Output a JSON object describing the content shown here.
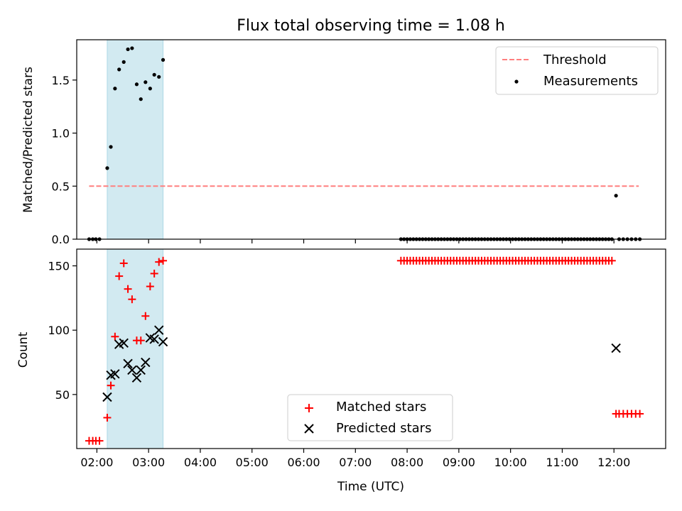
{
  "chart_data": [
    {
      "type": "scatter",
      "title": "Flux total observing time = 1.08 h",
      "xlabel": "",
      "ylabel": "Matched/Predicted stars",
      "ylim": [
        0,
        1.88
      ],
      "yticks": [
        0.0,
        0.5,
        1.0,
        1.5
      ],
      "ytick_labels": [
        "0.0",
        "0.5",
        "1.0",
        "1.5"
      ],
      "xlim": [
        1.61,
        13.0
      ],
      "grid": false,
      "legend": "top-right",
      "highlight_span": {
        "x0": 2.2,
        "x1": 3.28,
        "color": "#add8e6"
      },
      "threshold": {
        "name": "Threshold",
        "value": 0.5,
        "x0": 1.85,
        "x1": 12.48,
        "color": "#ff7f7f"
      },
      "series": [
        {
          "name": "Measurements",
          "color": "#000000",
          "x": [
            1.85,
            1.92,
            1.98,
            2.05,
            2.2,
            2.27,
            2.35,
            2.43,
            2.52,
            2.6,
            2.68,
            2.77,
            2.85,
            2.94,
            3.03,
            3.11,
            3.2,
            3.28,
            7.88,
            7.94,
            8.0,
            8.06,
            8.12,
            8.18,
            8.24,
            8.3,
            8.36,
            8.42,
            8.48,
            8.54,
            8.6,
            8.66,
            8.72,
            8.78,
            8.84,
            8.9,
            8.96,
            9.02,
            9.08,
            9.14,
            9.2,
            9.26,
            9.32,
            9.38,
            9.44,
            9.5,
            9.56,
            9.62,
            9.68,
            9.74,
            9.8,
            9.86,
            9.92,
            9.98,
            10.04,
            10.1,
            10.16,
            10.22,
            10.28,
            10.34,
            10.4,
            10.46,
            10.52,
            10.58,
            10.64,
            10.7,
            10.76,
            10.82,
            10.88,
            10.94,
            11.0,
            11.06,
            11.12,
            11.18,
            11.24,
            11.3,
            11.36,
            11.42,
            11.48,
            11.54,
            11.6,
            11.66,
            11.72,
            11.78,
            11.84,
            11.9,
            11.96,
            12.04,
            12.1,
            12.18,
            12.26,
            12.34,
            12.42,
            12.5
          ],
          "y": [
            0,
            0,
            0,
            0,
            0.67,
            0.87,
            1.42,
            1.6,
            1.67,
            1.79,
            1.8,
            1.46,
            1.32,
            1.48,
            1.42,
            1.55,
            1.53,
            1.69,
            0,
            0,
            0,
            0,
            0,
            0,
            0,
            0,
            0,
            0,
            0,
            0,
            0,
            0,
            0,
            0,
            0,
            0,
            0,
            0,
            0,
            0,
            0,
            0,
            0,
            0,
            0,
            0,
            0,
            0,
            0,
            0,
            0,
            0,
            0,
            0,
            0,
            0,
            0,
            0,
            0,
            0,
            0,
            0,
            0,
            0,
            0,
            0,
            0,
            0,
            0,
            0,
            0,
            0,
            0,
            0,
            0,
            0,
            0,
            0,
            0,
            0,
            0,
            0,
            0,
            0,
            0,
            0,
            0,
            0.41,
            0,
            0,
            0,
            0,
            0,
            0
          ]
        }
      ]
    },
    {
      "type": "scatter",
      "xlabel": "Time (UTC)",
      "ylabel": "Count",
      "ylim": [
        8,
        163
      ],
      "yticks": [
        50,
        100,
        150
      ],
      "ytick_labels": [
        "50",
        "100",
        "150"
      ],
      "xlim": [
        1.61,
        13.0
      ],
      "xticks": [
        2,
        3,
        4,
        5,
        6,
        7,
        8,
        9,
        10,
        11,
        12
      ],
      "xtick_labels": [
        "02:00",
        "03:00",
        "04:00",
        "05:00",
        "06:00",
        "07:00",
        "08:00",
        "09:00",
        "10:00",
        "11:00",
        "12:00"
      ],
      "grid": false,
      "legend": "lower-center",
      "highlight_span": {
        "x0": 2.2,
        "x1": 3.28,
        "color": "#add8e6"
      },
      "series": [
        {
          "name": "Matched stars",
          "marker": "+",
          "color": "#ff0000",
          "x": [
            1.85,
            1.92,
            1.98,
            2.05,
            2.2,
            2.27,
            2.35,
            2.43,
            2.52,
            2.6,
            2.68,
            2.77,
            2.85,
            2.94,
            3.03,
            3.11,
            3.2,
            3.28,
            7.88,
            7.94,
            8.0,
            8.06,
            8.12,
            8.18,
            8.24,
            8.3,
            8.36,
            8.42,
            8.48,
            8.54,
            8.6,
            8.66,
            8.72,
            8.78,
            8.84,
            8.9,
            8.96,
            9.02,
            9.08,
            9.14,
            9.2,
            9.26,
            9.32,
            9.38,
            9.44,
            9.5,
            9.56,
            9.62,
            9.68,
            9.74,
            9.8,
            9.86,
            9.92,
            9.98,
            10.04,
            10.1,
            10.16,
            10.22,
            10.28,
            10.34,
            10.4,
            10.46,
            10.52,
            10.58,
            10.64,
            10.7,
            10.76,
            10.82,
            10.88,
            10.94,
            11.0,
            11.06,
            11.12,
            11.18,
            11.24,
            11.3,
            11.36,
            11.42,
            11.48,
            11.54,
            11.6,
            11.66,
            11.72,
            11.78,
            11.84,
            11.9,
            11.96,
            12.04,
            12.1,
            12.18,
            12.26,
            12.34,
            12.42,
            12.5
          ],
          "y": [
            14,
            14,
            14,
            14,
            32,
            57,
            95,
            142,
            152,
            132,
            124,
            92,
            92,
            111,
            134,
            144,
            153,
            154,
            154,
            154,
            154,
            154,
            154,
            154,
            154,
            154,
            154,
            154,
            154,
            154,
            154,
            154,
            154,
            154,
            154,
            154,
            154,
            154,
            154,
            154,
            154,
            154,
            154,
            154,
            154,
            154,
            154,
            154,
            154,
            154,
            154,
            154,
            154,
            154,
            154,
            154,
            154,
            154,
            154,
            154,
            154,
            154,
            154,
            154,
            154,
            154,
            154,
            154,
            154,
            154,
            154,
            154,
            154,
            154,
            154,
            154,
            154,
            154,
            154,
            154,
            154,
            154,
            154,
            154,
            154,
            154,
            154,
            35,
            35,
            35,
            35,
            35,
            35,
            35
          ]
        },
        {
          "name": "Predicted stars",
          "marker": "x",
          "color": "#000000",
          "x": [
            2.2,
            2.27,
            2.35,
            2.43,
            2.52,
            2.6,
            2.68,
            2.77,
            2.85,
            2.94,
            3.03,
            3.11,
            3.2,
            3.28,
            12.04
          ],
          "y": [
            48,
            65,
            66,
            89,
            90,
            74,
            69,
            63,
            69,
            75,
            94,
            93,
            100,
            91,
            86
          ]
        }
      ]
    }
  ]
}
